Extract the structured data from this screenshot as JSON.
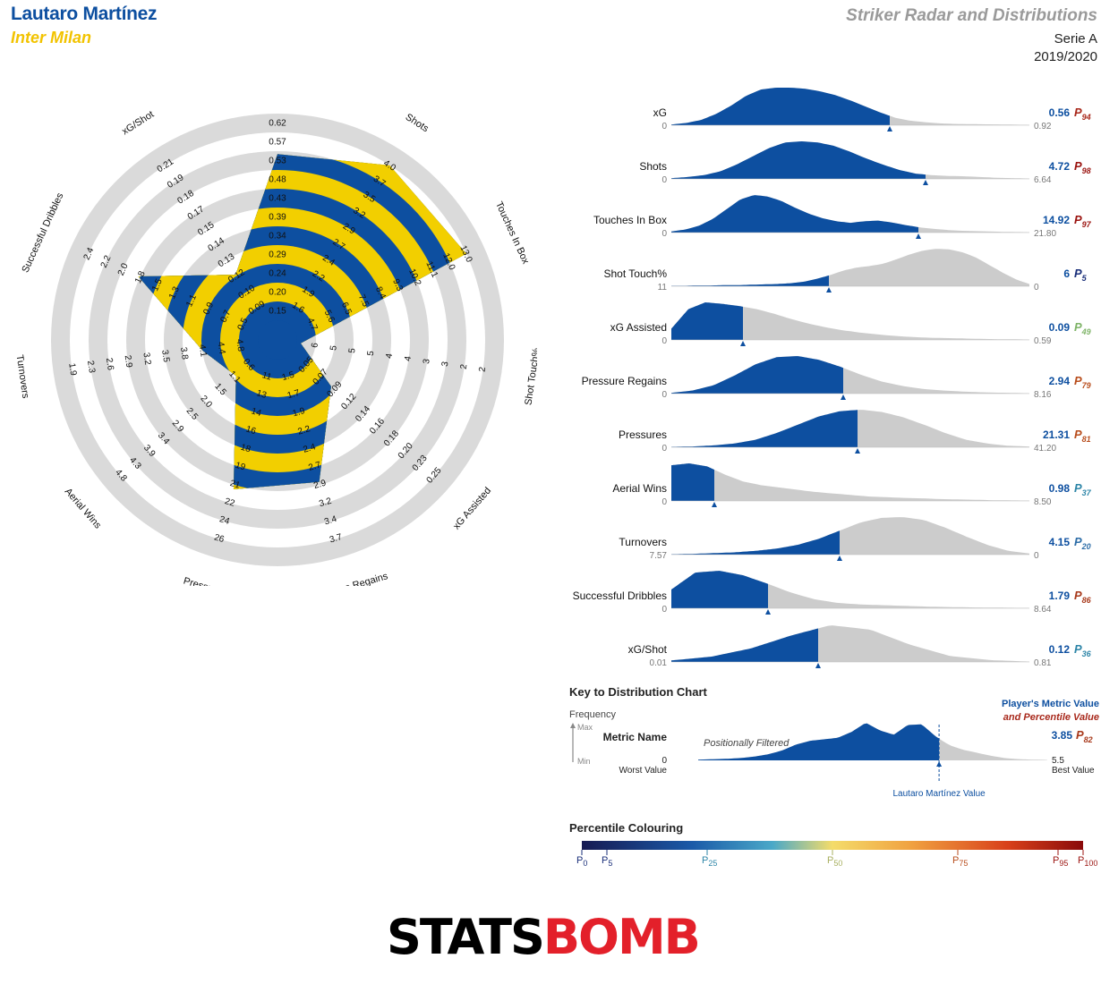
{
  "header": {
    "player_name": "Lautaro Martínez",
    "team": "Inter Milan",
    "title": "Striker Radar and Distributions",
    "competition": "Serie A",
    "season": "2019/2020"
  },
  "colors": {
    "blue": "#0d4fa0",
    "yellow": "#f2cf00",
    "ring_grey": "#dadada",
    "dist_grey": "#cccccc",
    "team_yellow": "#f2c300",
    "logo_red": "#e3202a"
  },
  "chart_data": [
    {
      "type": "radar",
      "axes": [
        {
          "label": "xG",
          "ticks": [
            "0.15",
            "0.20",
            "0.24",
            "0.29",
            "0.34",
            "0.39",
            "0.43",
            "0.48",
            "0.53",
            "0.57",
            "0.62"
          ],
          "value": 0.56,
          "min": 0.1,
          "max": 0.62
        },
        {
          "label": "Shots",
          "ticks": [
            "1.6",
            "1.9",
            "2.2",
            "2.4",
            "2.7",
            "2.9",
            "3.2",
            "3.5",
            "3.7",
            "4.0"
          ],
          "value": 4.72,
          "min": 1.3,
          "max": 4.0
        },
        {
          "label": "Touches In Box",
          "ticks": [
            "4.7",
            "5.6",
            "6.5",
            "7.5",
            "8.4",
            "9.3",
            "10.2",
            "11.1",
            "12.0",
            "13.0"
          ],
          "value": 14.92,
          "min": 3.8,
          "max": 13.0
        },
        {
          "label": "Shot Touch%",
          "ticks": [
            "6",
            "5",
            "5",
            "5",
            "4",
            "4",
            "3",
            "3",
            "2",
            "2"
          ],
          "value": 6,
          "min": 6,
          "max": 2
        },
        {
          "label": "xG Assisted",
          "ticks": [
            "0.05",
            "0.07",
            "0.09",
            "0.12",
            "0.14",
            "0.16",
            "0.18",
            "0.20",
            "0.23",
            "0.25"
          ],
          "value": 0.09,
          "min": 0.03,
          "max": 0.25
        },
        {
          "label": "Pressure Regains",
          "ticks": [
            "1.5",
            "1.7",
            "1.9",
            "2.2",
            "2.4",
            "2.7",
            "2.9",
            "3.2",
            "3.4",
            "3.7"
          ],
          "value": 2.94,
          "min": 1.3,
          "max": 3.7
        },
        {
          "label": "Pressures",
          "ticks": [
            "11",
            "13",
            "14",
            "16",
            "18",
            "19",
            "21",
            "22",
            "24",
            "26"
          ],
          "value": 21.31,
          "min": 9,
          "max": 26
        },
        {
          "label": "Aerial Wins",
          "ticks": [
            "0.6",
            "1.1",
            "1.5",
            "2.0",
            "2.5",
            "2.9",
            "3.4",
            "3.9",
            "4.3",
            "4.8"
          ],
          "value": 0.98,
          "min": 0.1,
          "max": 4.8
        },
        {
          "label": "Turnovers",
          "ticks": [
            "4.8",
            "4.4",
            "4.1",
            "3.8",
            "3.5",
            "3.2",
            "2.9",
            "2.6",
            "2.3",
            "1.9"
          ],
          "value": 4.15,
          "min": 5.1,
          "max": 1.9
        },
        {
          "label": "Successful Dribbles",
          "ticks": [
            "0.5",
            "0.7",
            "0.9",
            "1.1",
            "1.3",
            "1.5",
            "1.8",
            "2.0",
            "2.2",
            "2.4"
          ],
          "value": 1.79,
          "min": 0.3,
          "max": 2.4
        },
        {
          "label": "xG/Shot",
          "ticks": [
            "0.09",
            "0.10",
            "0.12",
            "0.13",
            "0.14",
            "0.15",
            "0.17",
            "0.18",
            "0.19",
            "0.21"
          ],
          "value": 0.12,
          "min": 0.08,
          "max": 0.21
        }
      ]
    },
    {
      "type": "area",
      "title": "Distributions",
      "rows": [
        {
          "label": "xG",
          "worst": "0",
          "best": "0.92",
          "value": "0.56",
          "pct": "94",
          "pct_color": "#a8281b",
          "marker": 0.61,
          "density": [
            0.02,
            0.06,
            0.14,
            0.3,
            0.52,
            0.78,
            0.95,
            1,
            1,
            0.97,
            0.9,
            0.8,
            0.66,
            0.5,
            0.34,
            0.2,
            0.12,
            0.08,
            0.05,
            0.035,
            0.03,
            0.025,
            0.02,
            0.015,
            0.01
          ]
        },
        {
          "label": "Shots",
          "worst": "0",
          "best": "6.64",
          "value": "4.72",
          "pct": "98",
          "pct_color": "#9b1410",
          "marker": 0.71,
          "density": [
            0.02,
            0.05,
            0.1,
            0.2,
            0.38,
            0.6,
            0.82,
            0.97,
            1,
            0.97,
            0.88,
            0.72,
            0.54,
            0.38,
            0.24,
            0.14,
            0.1,
            0.08,
            0.07,
            0.05,
            0.03,
            0.02,
            0.01
          ]
        },
        {
          "label": "Touches In Box",
          "worst": "0",
          "best": "21.80",
          "value": "14.92",
          "pct": "97",
          "pct_color": "#9b1410",
          "marker": 0.69,
          "density": [
            0.03,
            0.08,
            0.18,
            0.36,
            0.62,
            0.88,
            1,
            0.96,
            0.84,
            0.66,
            0.5,
            0.38,
            0.3,
            0.26,
            0.3,
            0.32,
            0.27,
            0.2,
            0.14,
            0.1,
            0.07,
            0.05,
            0.04,
            0.03,
            0.02,
            0.015,
            0.01
          ]
        },
        {
          "label": "Shot Touch%",
          "worst": "11",
          "best": "0",
          "value": "6",
          "pct": "5",
          "pct_color": "#1a2f7a",
          "marker": 0.44,
          "density": [
            0.01,
            0.01,
            0.02,
            0.02,
            0.03,
            0.03,
            0.04,
            0.05,
            0.06,
            0.08,
            0.12,
            0.2,
            0.3,
            0.42,
            0.5,
            0.54,
            0.6,
            0.72,
            0.85,
            0.95,
            1,
            0.98,
            0.9,
            0.76,
            0.56,
            0.36,
            0.18,
            0.06
          ]
        },
        {
          "label": "xG Assisted",
          "worst": "0",
          "best": "0.59",
          "value": "0.09",
          "pct": "49",
          "pct_color": "#7fb468",
          "marker": 0.2,
          "density": [
            0.3,
            0.82,
            1,
            0.96,
            0.9,
            0.82,
            0.7,
            0.56,
            0.44,
            0.34,
            0.26,
            0.2,
            0.15,
            0.11,
            0.08,
            0.06,
            0.05,
            0.04,
            0.03,
            0.02,
            0.02,
            0.01
          ]
        },
        {
          "label": "Pressure Regains",
          "worst": "0",
          "best": "8.16",
          "value": "2.94",
          "pct": "79",
          "pct_color": "#b84d1c",
          "marker": 0.48,
          "density": [
            0.02,
            0.08,
            0.22,
            0.48,
            0.78,
            0.97,
            1,
            0.9,
            0.72,
            0.5,
            0.32,
            0.2,
            0.12,
            0.08,
            0.05,
            0.03,
            0.02,
            0.01
          ]
        },
        {
          "label": "Pressures",
          "worst": "0",
          "best": "41.20",
          "value": "21.31",
          "pct": "81",
          "pct_color": "#b84d1c",
          "marker": 0.52,
          "density": [
            0.01,
            0.02,
            0.05,
            0.1,
            0.2,
            0.38,
            0.6,
            0.82,
            0.96,
            1,
            0.94,
            0.8,
            0.6,
            0.38,
            0.2,
            0.1,
            0.04,
            0.02
          ]
        },
        {
          "label": "Aerial Wins",
          "worst": "0",
          "best": "8.50",
          "value": "0.98",
          "pct": "37",
          "pct_color": "#2e86a8",
          "marker": 0.12,
          "density": [
            0.95,
            1,
            0.92,
            0.7,
            0.52,
            0.42,
            0.36,
            0.3,
            0.24,
            0.2,
            0.16,
            0.12,
            0.1,
            0.08,
            0.07,
            0.05,
            0.04,
            0.03,
            0.02,
            0.015,
            0.01
          ]
        },
        {
          "label": "Turnovers",
          "worst": "7.57",
          "best": "0",
          "value": "4.15",
          "pct": "20",
          "pct_color": "#2e6ea8",
          "marker": 0.47,
          "density": [
            0.01,
            0.02,
            0.04,
            0.06,
            0.1,
            0.16,
            0.26,
            0.42,
            0.64,
            0.86,
            0.98,
            1,
            0.92,
            0.72,
            0.48,
            0.26,
            0.1,
            0.03
          ]
        },
        {
          "label": "Successful Dribbles",
          "worst": "0",
          "best": "8.64",
          "value": "1.79",
          "pct": "86",
          "pct_color": "#a83a1c",
          "marker": 0.27,
          "density": [
            0.5,
            0.95,
            1,
            0.88,
            0.66,
            0.42,
            0.24,
            0.14,
            0.1,
            0.08,
            0.06,
            0.04,
            0.03,
            0.02,
            0.015,
            0.01
          ]
        },
        {
          "label": "xG/Shot",
          "worst": "0.01",
          "best": "0.81",
          "value": "0.12",
          "pct": "36",
          "pct_color": "#2e86a8",
          "marker": 0.41,
          "density": [
            0.04,
            0.14,
            0.36,
            0.7,
            0.98,
            0.86,
            0.46,
            0.16,
            0.05,
            0.01
          ]
        }
      ]
    }
  ],
  "key": {
    "title": "Key to Distribution Chart",
    "frequency": "Frequency",
    "max": "Max",
    "min": "Min",
    "metric_name": "Metric Name",
    "filtered": "Positionally Filtered",
    "worst_value": "0",
    "worst_label": "Worst Value",
    "best_value": "5.5",
    "best_label": "Best Value",
    "player_value_label": "Player's Metric Value",
    "percentile_label": "and Percentile Value",
    "value": "3.85",
    "pct": "82",
    "player_marker_label": "Lautaro Martínez Value",
    "density": [
      0.02,
      0.03,
      0.04,
      0.06,
      0.1,
      0.16,
      0.26,
      0.42,
      0.52,
      0.56,
      0.6,
      0.76,
      1,
      0.8,
      0.68,
      0.94,
      0.96,
      0.64,
      0.4,
      0.28,
      0.2,
      0.12,
      0.06,
      0.03,
      0.02,
      0.01
    ],
    "marker": 0.69
  },
  "percentile_scale": {
    "title": "Percentile Colouring",
    "ticks": [
      {
        "label": "0",
        "p": 0,
        "color": "#1a2f7a"
      },
      {
        "label": "5",
        "p": 5,
        "color": "#1a2f7a"
      },
      {
        "label": "25",
        "p": 25,
        "color": "#2e86a8"
      },
      {
        "label": "50",
        "p": 50,
        "color": "#a8b060"
      },
      {
        "label": "75",
        "p": 75,
        "color": "#b84d1c"
      },
      {
        "label": "95",
        "p": 95,
        "color": "#9b1410"
      },
      {
        "label": "100",
        "p": 100,
        "color": "#9b1410"
      }
    ]
  },
  "logo": {
    "part1": "STATS",
    "part2": "BOMB"
  }
}
